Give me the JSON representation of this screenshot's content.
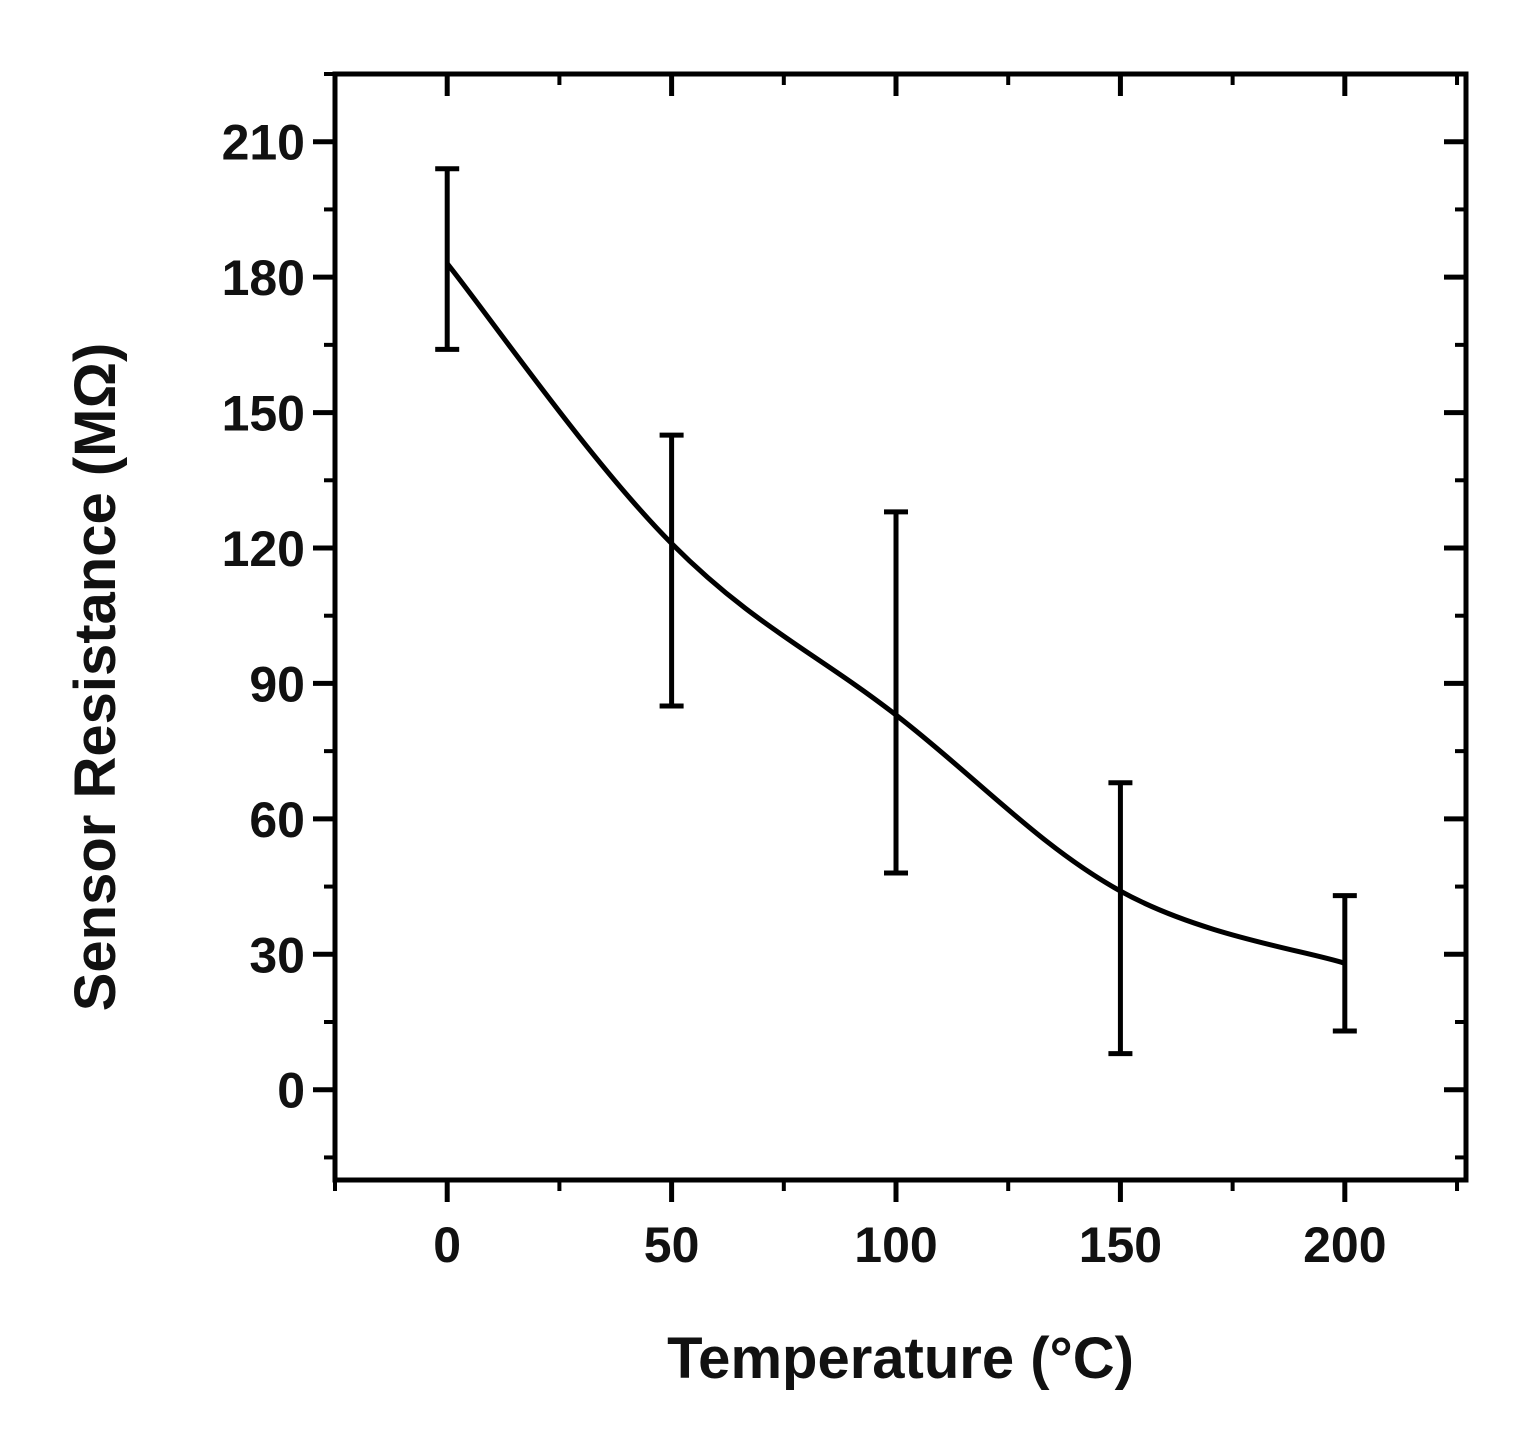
{
  "chart_data": {
    "type": "line",
    "title": "",
    "xlabel": "Temperature (°C)",
    "ylabel": "Sensor Resistance (MΩ)",
    "xlim": [
      -25,
      227
    ],
    "ylim": [
      -20,
      225
    ],
    "x_ticks": [
      0,
      50,
      100,
      150,
      200
    ],
    "y_ticks": [
      0,
      30,
      60,
      90,
      120,
      150,
      180,
      210
    ],
    "x_tick_labels": [
      "0",
      "50",
      "100",
      "150",
      "200"
    ],
    "y_tick_labels": [
      "0",
      "30",
      "60",
      "90",
      "120",
      "150",
      "180",
      "210"
    ],
    "grid": false,
    "legend": "none",
    "line_color": "#000000",
    "series": [
      {
        "x": [
          0,
          50,
          100,
          150,
          200
        ],
        "y": [
          183,
          121,
          83,
          44,
          28
        ],
        "error_low": [
          164,
          85,
          48,
          8,
          13
        ],
        "error_high": [
          204,
          145,
          128,
          68,
          43
        ],
        "smooth": true
      }
    ]
  }
}
